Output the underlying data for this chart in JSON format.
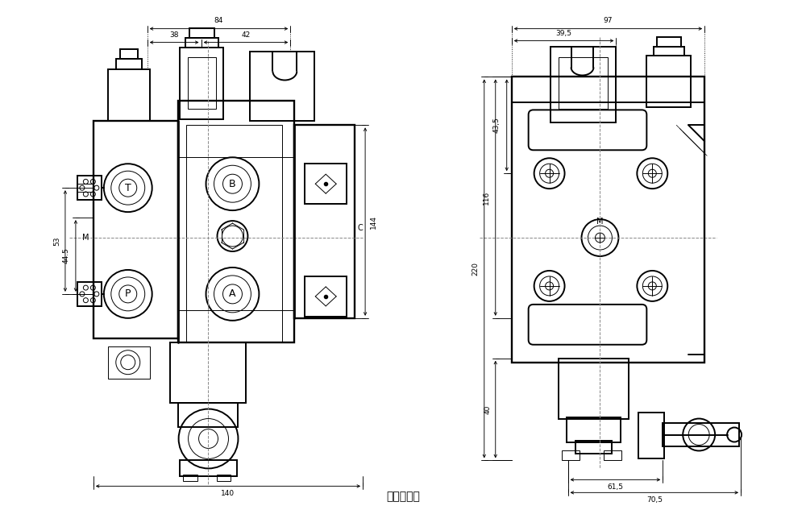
{
  "title": "液压原理图",
  "bg_color": "#ffffff",
  "line_color": "#000000",
  "fig_width": 10.0,
  "fig_height": 6.28,
  "dpi": 100,
  "left_dims": [
    "84",
    "38",
    "42",
    "53",
    "44.5",
    "144",
    "140"
  ],
  "right_dims": [
    "97",
    "39,5",
    "220",
    "116",
    "43,5",
    "40",
    "61,5",
    "70,5"
  ],
  "port_labels_left": [
    "T",
    "B",
    "M",
    "C",
    "P",
    "A"
  ],
  "port_labels_right": [
    "M"
  ]
}
